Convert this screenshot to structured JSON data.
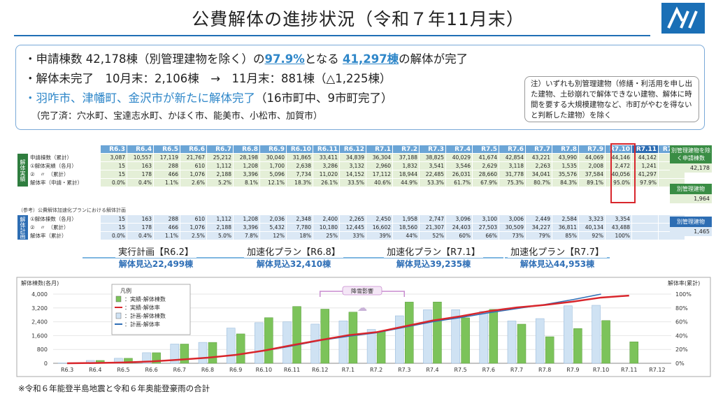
{
  "title": "公費解体の進捗状況（令和７年11月末）",
  "summary": {
    "l1_a": "・申請棟数 42,178棟（別管理建物を除く）の",
    "l1_pct": "97.9%",
    "l1_b": "となる",
    "l1_cnt": "41,297棟",
    "l1_c": "の解体が完了",
    "l2": "・解体未完了　10月末：2,106棟　→　11月末：881棟（△1,225棟）",
    "l3_a": "・羽咋市、津幡町、金沢市が新たに解体完了",
    "l3_b": "（16市町中、9市町完了）",
    "l4": "（完了済：穴水町、宝達志水町、かほく市、能美市、小松市、加賀市）",
    "note": "注）いずれも別管理建物（修繕・利活用を申し出た建物、土砂崩れで解体できない建物、解体に時間を要する大規模建物など、市町がやむを得ないと判断した建物）を除く"
  },
  "table": {
    "months": [
      "R6.3",
      "R6.4",
      "R6.5",
      "R6.6",
      "R6.7",
      "R6.8",
      "R6.9",
      "R6.10",
      "R6.11",
      "R6.12",
      "R7.1",
      "R7.2",
      "R7.3",
      "R7.4",
      "R7.5",
      "R7.6",
      "R7.7",
      "R7.8",
      "R7.9",
      "R7.10",
      "R7.11",
      "R7.12"
    ],
    "actual_side": "解体実績",
    "plan_side": "解体計画",
    "actual_rows": [
      {
        "label": "申請棟数（累計）",
        "values": [
          "3,087",
          "10,557",
          "17,119",
          "21,767",
          "25,212",
          "28,198",
          "30,040",
          "31,865",
          "33,411",
          "34,839",
          "36,304",
          "37,188",
          "38,825",
          "40,029",
          "41,674",
          "42,854",
          "43,221",
          "43,990",
          "44,069",
          "44,146",
          "44,142",
          ""
        ]
      },
      {
        "label": "①解体実績（各月）",
        "values": [
          "15",
          "163",
          "288",
          "610",
          "1,112",
          "1,208",
          "1,700",
          "2,638",
          "3,286",
          "3,132",
          "2,960",
          "1,832",
          "3,541",
          "3,546",
          "2,629",
          "3,118",
          "2,263",
          "1,535",
          "2,008",
          "2,472",
          "1,241",
          ""
        ]
      },
      {
        "label": "②　〃　（累計）",
        "values": [
          "15",
          "178",
          "466",
          "1,076",
          "2,188",
          "3,396",
          "5,096",
          "7,734",
          "11,020",
          "14,152",
          "17,112",
          "18,944",
          "22,485",
          "26,031",
          "28,660",
          "31,778",
          "34,041",
          "35,576",
          "37,584",
          "40,056",
          "41,297",
          ""
        ]
      },
      {
        "label": "解体率（申請・累計）",
        "values": [
          "0.0%",
          "0.4%",
          "1.1%",
          "2.6%",
          "5.2%",
          "8.1%",
          "12.1%",
          "18.3%",
          "26.1%",
          "33.5%",
          "40.6%",
          "44.9%",
          "53.3%",
          "61.7%",
          "67.9%",
          "75.3%",
          "80.7%",
          "84.3%",
          "89.1%",
          "95.0%",
          "97.9%",
          ""
        ]
      }
    ],
    "ref_caption": "（参考）公費解体加速化プランにおける解体計画",
    "plan_rows": [
      {
        "label": "①解体棟数（各月）",
        "values": [
          "15",
          "163",
          "288",
          "610",
          "1,112",
          "1,208",
          "2,036",
          "2,348",
          "2,400",
          "2,265",
          "2,450",
          "1,958",
          "2,747",
          "3,096",
          "3,100",
          "3,006",
          "2,449",
          "2,584",
          "3,323",
          "3,354",
          "",
          ""
        ]
      },
      {
        "label": "②　〃　（累計）",
        "values": [
          "15",
          "178",
          "466",
          "1,076",
          "2,188",
          "3,396",
          "5,432",
          "7,780",
          "10,180",
          "12,445",
          "16,602",
          "18,560",
          "21,307",
          "24,403",
          "27,503",
          "30,509",
          "34,227",
          "36,811",
          "40,134",
          "43,488",
          "",
          ""
        ]
      },
      {
        "label": "解体率（累計）",
        "values": [
          "0.0%",
          "0.4%",
          "1.1%",
          "2.5%",
          "5.0%",
          "7.8%",
          "12%",
          "18%",
          "25%",
          "33%",
          "39%",
          "44%",
          "52%",
          "60%",
          "66%",
          "73%",
          "79%",
          "85%",
          "92%",
          "100%",
          "",
          ""
        ]
      }
    ],
    "side_boxes": [
      {
        "head": "別管理建物を除く申請棟数",
        "value": "42,178"
      },
      {
        "head": "別管理建物",
        "value": "1,964"
      },
      {
        "head": "別管理建物",
        "value": "1,465"
      }
    ]
  },
  "plans": [
    {
      "name": "実行計画【R6.2】",
      "sub": "解体見込22,499棟"
    },
    {
      "name": "加速化プラン【R6.8】",
      "sub": "解体見込32,410棟"
    },
    {
      "name": "加速化プラン【R7.1】",
      "sub": "解体見込39,235棟"
    },
    {
      "name": "加速化プラン【R7.7】",
      "sub": "解体見込44,953棟"
    }
  ],
  "chart_data": {
    "type": "bar",
    "ylabel_left": "解体棟数(各月)",
    "ylabel_right": "解体率(累計)",
    "ylim_left": [
      0,
      4000
    ],
    "ylim_right": [
      0,
      100
    ],
    "yticks_left": [
      "0",
      "800",
      "1,600",
      "2,400",
      "3,200",
      "4,000"
    ],
    "yticks_right": [
      "0%",
      "20%",
      "40%",
      "60%",
      "80%",
      "100%"
    ],
    "categories": [
      "R6.3",
      "R6.4",
      "R6.5",
      "R6.6",
      "R6.7",
      "R6.8",
      "R6.9",
      "R6.10",
      "R6.11",
      "R6.12",
      "R7.1",
      "R7.2",
      "R7.3",
      "R7.4",
      "R7.5",
      "R7.6",
      "R7.7",
      "R7.8",
      "R7.9",
      "R7.10",
      "R7.11",
      "R7.12"
    ],
    "series": [
      {
        "name": "実績-解体棟数",
        "kind": "bar",
        "color": "#7cc35a",
        "values": [
          15,
          163,
          288,
          610,
          1112,
          1208,
          1700,
          2638,
          3286,
          3132,
          2960,
          1832,
          3541,
          3546,
          2629,
          3118,
          2263,
          1535,
          2008,
          2472,
          1241,
          null
        ]
      },
      {
        "name": "実績-解体率",
        "kind": "line",
        "color": "#d8262c",
        "values": [
          0.0,
          0.4,
          1.1,
          2.6,
          5.2,
          8.1,
          12.1,
          18.3,
          26.1,
          33.5,
          40.6,
          44.9,
          53.3,
          61.7,
          67.9,
          75.3,
          80.7,
          84.3,
          89.1,
          95.0,
          97.9,
          null
        ]
      },
      {
        "name": "計画-解体棟数",
        "kind": "bar",
        "color": "#cfe2f3",
        "values": [
          15,
          163,
          288,
          610,
          1112,
          1208,
          2036,
          2348,
          2400,
          2265,
          2450,
          1958,
          2747,
          3096,
          3100,
          3006,
          2449,
          2584,
          3323,
          3354,
          null,
          null
        ]
      },
      {
        "name": "計画-解体率",
        "kind": "line",
        "color": "#2f6fb6",
        "values": [
          0.0,
          0.4,
          1.1,
          2.5,
          5.0,
          7.8,
          12,
          18,
          25,
          33,
          39,
          44,
          52,
          60,
          66,
          73,
          79,
          85,
          92,
          100,
          null,
          null
        ]
      }
    ],
    "legend_title": "凡例",
    "legend": [
      "：実績-解体棟数",
      "：実績-解体率",
      "：計画-解体棟数",
      "：計画-解体率"
    ],
    "annotation": "降雪影響",
    "legend_position": "top-left"
  },
  "footnote": "※令和６年能登半島地震と令和６年奥能登豪雨の合計"
}
